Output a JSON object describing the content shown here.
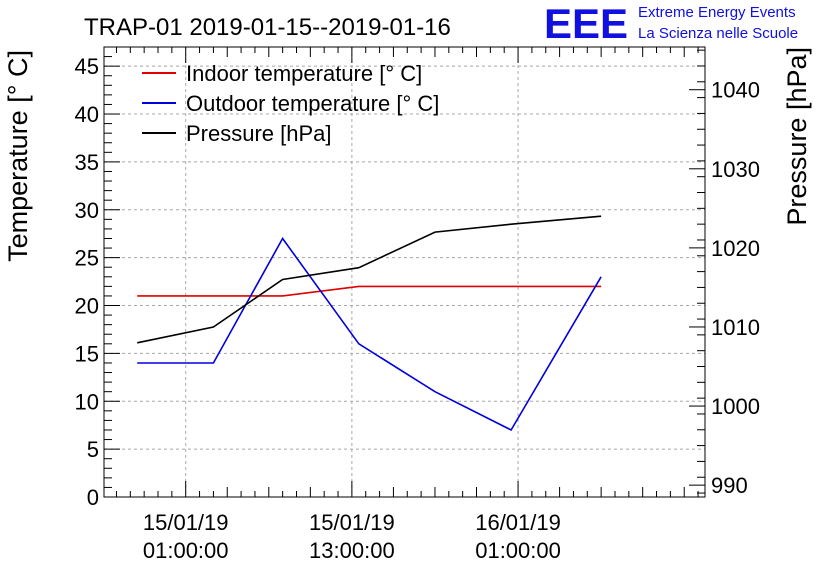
{
  "chart_data": {
    "type": "line",
    "title": "TRAP-01 2019-01-15--2019-01-16",
    "ylabel_left": "Temperature [° C]",
    "ylabel_right": "Pressure [hPa]",
    "xlabel": "",
    "x_tick_labels": [
      {
        "date": "15/01/19",
        "time": "01:00:00",
        "hours": 1
      },
      {
        "date": "15/01/19",
        "time": "13:00:00",
        "hours": 13
      },
      {
        "date": "16/01/19",
        "time": "01:00:00",
        "hours": 25
      }
    ],
    "xlim_hours": [
      -4.9,
      38.5
    ],
    "ylim_left": [
      0,
      47
    ],
    "y_ticks_left": [
      0,
      5,
      10,
      15,
      20,
      25,
      30,
      35,
      40,
      45
    ],
    "ylim_right": [
      988.5,
      1045.4
    ],
    "y_ticks_right": [
      990,
      1000,
      1010,
      1020,
      1030,
      1040
    ],
    "grid": true,
    "legend_position": "top-left",
    "series": [
      {
        "name": "Indoor temperature [° C]",
        "color": "#e00000",
        "axis": "left",
        "x_hours": [
          -2.5,
          3,
          8,
          13.5,
          19,
          24.5,
          31
        ],
        "values": [
          21,
          21,
          21,
          22,
          22,
          22,
          22
        ]
      },
      {
        "name": "Outdoor temperature [° C]",
        "color": "#0000dd",
        "axis": "left",
        "x_hours": [
          -2.5,
          3,
          8,
          13.5,
          19,
          24.5,
          31
        ],
        "values": [
          14,
          14,
          27,
          16,
          11,
          7,
          23
        ]
      },
      {
        "name": "Pressure [hPa]",
        "color": "#000000",
        "axis": "right",
        "x_hours": [
          -2.5,
          3,
          8,
          13.5,
          19,
          24.5,
          31
        ],
        "values": [
          1008,
          1010,
          1016,
          1017.5,
          1022,
          1023,
          1024
        ]
      }
    ]
  },
  "logo": {
    "text": "EEE",
    "line1": "Extreme Energy Events",
    "line2": "La Scienza nelle Scuole"
  }
}
